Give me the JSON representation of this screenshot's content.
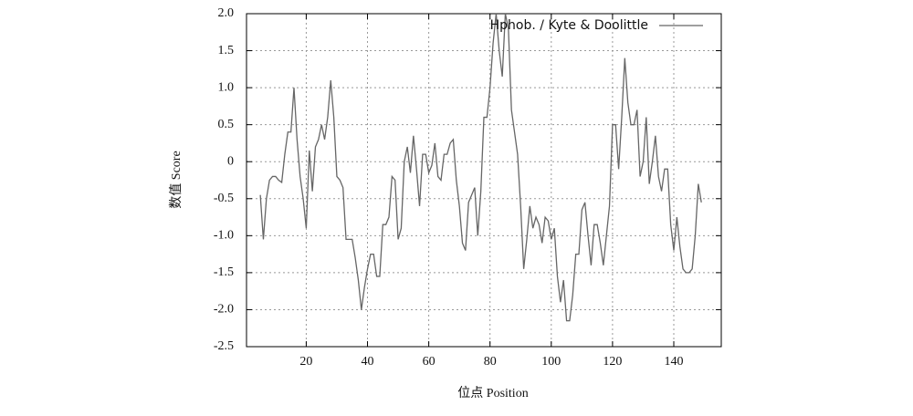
{
  "chart_data": {
    "type": "line",
    "xlabel": "位点 Position",
    "ylabel": "数值  Score",
    "x": [
      5,
      6,
      7,
      8,
      9,
      10,
      11,
      12,
      13,
      14,
      15,
      16,
      17,
      18,
      19,
      20,
      21,
      22,
      23,
      24,
      25,
      26,
      27,
      28,
      29,
      30,
      31,
      32,
      33,
      34,
      35,
      36,
      37,
      38,
      39,
      40,
      41,
      42,
      43,
      44,
      45,
      46,
      47,
      48,
      49,
      50,
      51,
      52,
      53,
      54,
      55,
      56,
      57,
      58,
      59,
      60,
      61,
      62,
      63,
      64,
      65,
      66,
      67,
      68,
      69,
      70,
      71,
      72,
      73,
      74,
      75,
      76,
      77,
      78,
      79,
      80,
      81,
      82,
      83,
      84,
      85,
      86,
      87,
      88,
      89,
      90,
      91,
      92,
      93,
      94,
      95,
      96,
      97,
      98,
      99,
      100,
      101,
      102,
      103,
      104,
      105,
      106,
      107,
      108,
      109,
      110,
      111,
      112,
      113,
      114,
      115,
      116,
      117,
      118,
      119,
      120,
      121,
      122,
      123,
      124,
      125,
      126,
      127,
      128,
      129,
      130,
      131,
      132,
      133,
      134,
      135,
      136,
      137,
      138,
      139,
      140,
      141,
      142,
      143,
      144,
      145,
      146,
      147,
      148,
      149
    ],
    "series": [
      {
        "name": "Hphob. / Kyte & Doolittle",
        "color": "#666666",
        "values": [
          -0.45,
          -1.05,
          -0.5,
          -0.25,
          -0.2,
          -0.2,
          -0.25,
          -0.28,
          0.1,
          0.4,
          0.4,
          1.0,
          0.3,
          -0.2,
          -0.5,
          -0.9,
          0.15,
          -0.4,
          0.2,
          0.3,
          0.5,
          0.3,
          0.6,
          1.1,
          0.6,
          -0.2,
          -0.25,
          -0.35,
          -1.05,
          -1.05,
          -1.05,
          -1.3,
          -1.6,
          -2.0,
          -1.7,
          -1.45,
          -1.25,
          -1.25,
          -1.55,
          -1.55,
          -0.85,
          -0.85,
          -0.75,
          -0.2,
          -0.25,
          -1.05,
          -0.9,
          0.0,
          0.2,
          -0.15,
          0.35,
          -0.1,
          -0.6,
          0.1,
          0.1,
          -0.15,
          -0.05,
          0.25,
          -0.2,
          -0.25,
          0.1,
          0.1,
          0.25,
          0.3,
          -0.25,
          -0.6,
          -1.1,
          -1.2,
          -0.55,
          -0.45,
          -0.35,
          -1.0,
          -0.4,
          0.6,
          0.6,
          1.0,
          1.6,
          2.0,
          1.5,
          1.15,
          2.0,
          1.8,
          0.7,
          0.4,
          0.1,
          -0.6,
          -1.45,
          -1.05,
          -0.6,
          -0.9,
          -0.75,
          -0.85,
          -1.1,
          -0.75,
          -0.8,
          -1.05,
          -0.9,
          -1.55,
          -1.9,
          -1.6,
          -2.15,
          -2.15,
          -1.8,
          -1.25,
          -1.25,
          -0.65,
          -0.55,
          -1.0,
          -1.4,
          -0.85,
          -0.85,
          -1.1,
          -1.4,
          -1.0,
          -0.6,
          0.5,
          0.5,
          -0.1,
          0.6,
          1.4,
          0.8,
          0.5,
          0.5,
          0.7,
          -0.2,
          0.0,
          0.6,
          -0.3,
          0.0,
          0.35,
          -0.2,
          -0.4,
          -0.1,
          -0.1,
          -0.85,
          -1.2,
          -0.75,
          -1.15,
          -1.45,
          -1.5,
          -1.5,
          -1.45,
          -1.0,
          -0.3,
          -0.55
        ]
      }
    ],
    "xlim": [
      0.5,
      155.5
    ],
    "ylim": [
      -2.5,
      2.0
    ],
    "xticks": [
      20,
      40,
      60,
      80,
      100,
      120,
      140
    ],
    "yticks": [
      {
        "value": 2.0,
        "label": "2.0"
      },
      {
        "value": 1.5,
        "label": "1.5"
      },
      {
        "value": 1.0,
        "label": "1.0"
      },
      {
        "value": 0.5,
        "label": "0.5"
      },
      0,
      {
        "value": -0.5,
        "label": "-0.5"
      },
      {
        "value": -1.0,
        "label": "-1.0"
      },
      {
        "value": -1.5,
        "label": "-1.5"
      },
      {
        "value": -2.0,
        "label": "-2.0"
      },
      {
        "value": -2.5,
        "label": "-2.5"
      }
    ],
    "grid": true,
    "legend": "upper right"
  }
}
